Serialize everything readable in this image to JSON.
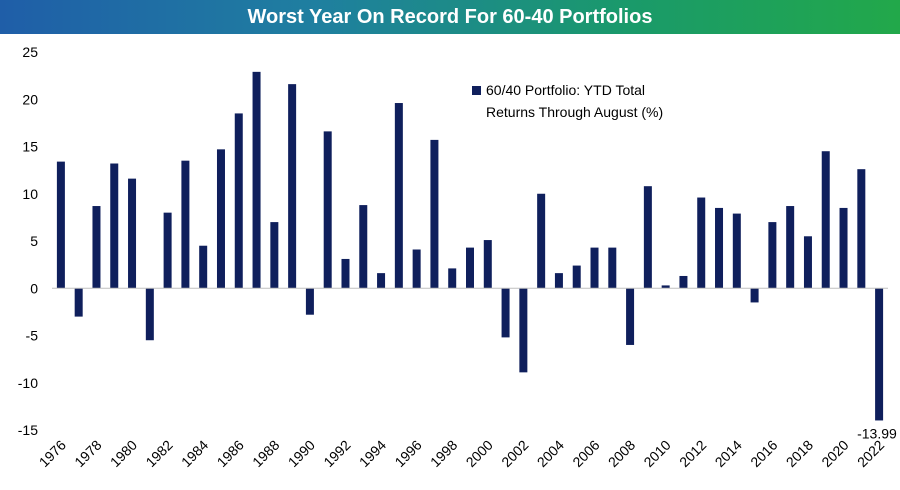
{
  "header": {
    "title": "Worst Year On Record For 60-40 Portfolios"
  },
  "colors": {
    "bar": "#0f1f5c",
    "title_start": "#1f5ea8",
    "title_end": "#22a84a"
  },
  "chart_data": {
    "type": "bar",
    "title": "Worst Year On Record For 60-40 Portfolios",
    "xlabel": "",
    "ylabel": "",
    "ylim": [
      -15,
      25
    ],
    "yticks": [
      25,
      20,
      15,
      10,
      5,
      0,
      -5,
      -10,
      -15
    ],
    "grid": false,
    "legend_position": "top-right",
    "categories": [
      "1976",
      "1977",
      "1978",
      "1979",
      "1980",
      "1981",
      "1982",
      "1983",
      "1984",
      "1985",
      "1986",
      "1987",
      "1988",
      "1989",
      "1990",
      "1991",
      "1992",
      "1993",
      "1994",
      "1995",
      "1996",
      "1997",
      "1998",
      "1999",
      "2000",
      "2001",
      "2002",
      "2003",
      "2004",
      "2005",
      "2006",
      "2007",
      "2008",
      "2009",
      "2010",
      "2011",
      "2012",
      "2013",
      "2014",
      "2015",
      "2016",
      "2017",
      "2018",
      "2019",
      "2020",
      "2021",
      "2022"
    ],
    "xtick_labels": [
      "1976",
      "1978",
      "1980",
      "1982",
      "1984",
      "1986",
      "1988",
      "1990",
      "1992",
      "1994",
      "1996",
      "1998",
      "2000",
      "2002",
      "2004",
      "2006",
      "2008",
      "2010",
      "2012",
      "2014",
      "2016",
      "2018",
      "2020",
      "2022"
    ],
    "series": [
      {
        "name": "60/40 Portfolio: YTD Total Returns Through August (%)",
        "legend_lines": [
          "60/40 Portfolio: YTD Total",
          "Returns Through August (%)"
        ],
        "values": [
          13.4,
          -3.0,
          8.7,
          13.2,
          11.6,
          -5.5,
          8.0,
          13.5,
          4.5,
          14.7,
          18.5,
          22.9,
          7.0,
          21.6,
          -2.8,
          16.6,
          3.1,
          8.8,
          1.6,
          19.6,
          4.1,
          15.7,
          2.1,
          4.3,
          5.1,
          -5.2,
          -8.9,
          10.0,
          1.6,
          2.4,
          4.3,
          4.3,
          -6.0,
          10.8,
          0.3,
          1.3,
          9.6,
          8.5,
          7.9,
          -1.5,
          7.0,
          8.7,
          5.5,
          14.5,
          8.5,
          12.6,
          -13.99
        ]
      }
    ],
    "annotations": [
      {
        "category": "2022",
        "text": "-13.99"
      }
    ]
  }
}
